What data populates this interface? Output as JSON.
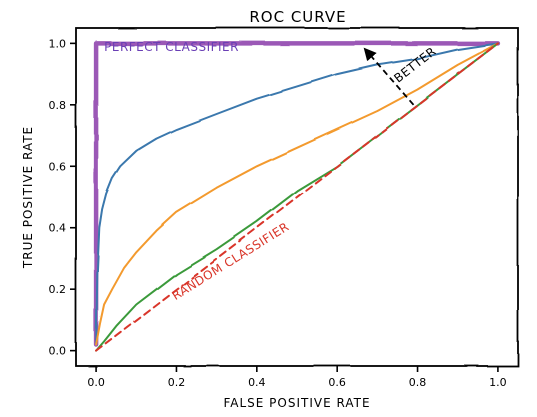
{
  "chart_data": {
    "type": "line",
    "title": "ROC CURVE",
    "xlabel": "FALSE POSITIVE RATE",
    "ylabel": "TRUE POSITIVE RATE",
    "xlim": [
      -0.05,
      1.05
    ],
    "ylim": [
      -0.05,
      1.05
    ],
    "xticks": [
      0.0,
      0.2,
      0.4,
      0.6,
      0.8,
      1.0
    ],
    "xtick_labels": [
      "0.0",
      "0.2",
      "0.4",
      "0.6",
      "0.8",
      "1.0"
    ],
    "yticks": [
      0.0,
      0.2,
      0.4,
      0.6,
      0.8,
      1.0
    ],
    "ytick_labels": [
      "0.0",
      "0.2",
      "0.4",
      "0.6",
      "0.8",
      "1.0"
    ],
    "grid": false,
    "style": "xkcd",
    "series": [
      {
        "name": "PERFECT CLASSIFIER",
        "color": "#9b59b6",
        "dash": "solid",
        "x": [
          0.0,
          0.0,
          1.0
        ],
        "y": [
          0.02,
          1.0,
          1.0
        ]
      },
      {
        "color": "#3a78ad",
        "dash": "solid",
        "x": [
          0.0,
          0.003,
          0.008,
          0.015,
          0.025,
          0.04,
          0.06,
          0.1,
          0.15,
          0.2,
          0.3,
          0.4,
          0.5,
          0.6,
          0.7,
          0.8,
          0.9,
          1.0
        ],
        "y": [
          0.02,
          0.25,
          0.4,
          0.46,
          0.51,
          0.56,
          0.6,
          0.65,
          0.69,
          0.72,
          0.77,
          0.82,
          0.86,
          0.9,
          0.93,
          0.95,
          0.98,
          1.0
        ]
      },
      {
        "color": "#f39a2e",
        "dash": "solid",
        "x": [
          0.0,
          0.01,
          0.02,
          0.04,
          0.07,
          0.1,
          0.15,
          0.2,
          0.3,
          0.4,
          0.5,
          0.6,
          0.7,
          0.8,
          0.9,
          1.0
        ],
        "y": [
          0.02,
          0.09,
          0.15,
          0.2,
          0.27,
          0.32,
          0.39,
          0.45,
          0.53,
          0.6,
          0.66,
          0.72,
          0.78,
          0.85,
          0.93,
          1.0
        ]
      },
      {
        "color": "#3a9a3a",
        "dash": "solid",
        "x": [
          0.0,
          0.02,
          0.05,
          0.1,
          0.15,
          0.2,
          0.3,
          0.4,
          0.5,
          0.6,
          0.7,
          0.8,
          0.9,
          1.0
        ],
        "y": [
          0.0,
          0.03,
          0.08,
          0.15,
          0.2,
          0.25,
          0.33,
          0.42,
          0.52,
          0.6,
          0.7,
          0.8,
          0.9,
          1.0
        ]
      },
      {
        "name": "RANDOM CLASSIFIER",
        "color": "#d9362a",
        "dash": "dashed",
        "x": [
          0.0,
          1.0
        ],
        "y": [
          0.0,
          1.0
        ]
      }
    ],
    "annotations": [
      {
        "text": "PERFECT CLASSIFIER",
        "color": "#6a3fb5",
        "x": 0.02,
        "y": 0.975
      },
      {
        "text": "RANDOM CLASSIFIER",
        "color": "#d9362a",
        "x": 0.34,
        "y": 0.28,
        "rotation": -32
      },
      {
        "text": "BETTER",
        "color": "#000000",
        "x": 0.8,
        "y": 0.92,
        "rotation": -38,
        "arrow_from": [
          0.79,
          0.8
        ],
        "arrow_to": [
          0.67,
          0.98
        ]
      }
    ]
  }
}
